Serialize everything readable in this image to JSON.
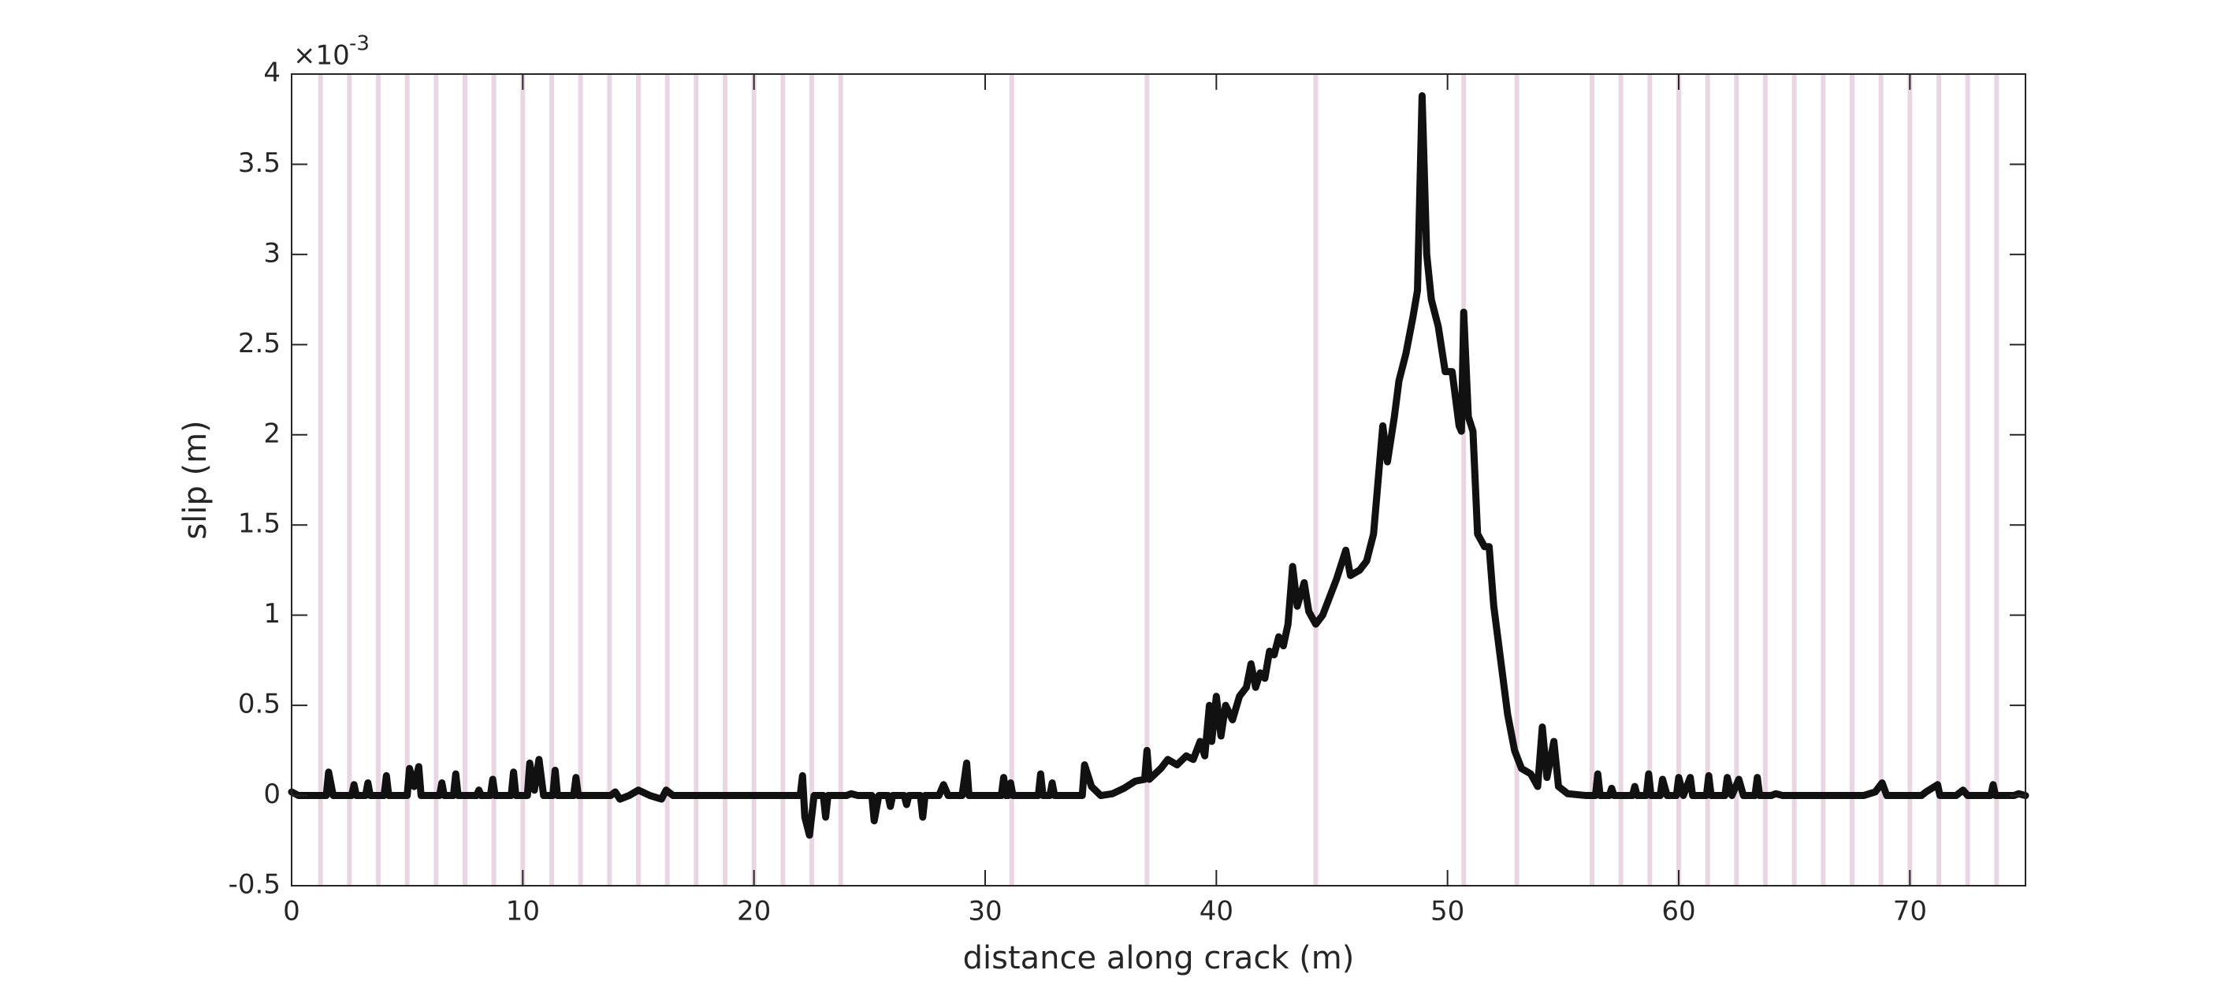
{
  "chart_data": {
    "type": "line",
    "xlabel": "distance along crack (m)",
    "ylabel": "slip (m)",
    "y_scale_base": "×10",
    "y_scale_exponent": "-3",
    "xlim": [
      0,
      75
    ],
    "ylim": [
      -0.5,
      4
    ],
    "xticks": [
      0,
      10,
      20,
      30,
      40,
      50,
      60,
      70
    ],
    "yticks": [
      -0.5,
      0,
      0.5,
      1,
      1.5,
      2,
      2.5,
      3,
      3.5,
      4
    ],
    "color": "#111111",
    "vline_color": "#ead6e3",
    "vlines": [
      1.25,
      2.5,
      3.75,
      5,
      6.25,
      7.5,
      8.75,
      10,
      11.25,
      12.5,
      13.75,
      15,
      16.25,
      17.5,
      18.75,
      20,
      21.25,
      22.5,
      23.75,
      31.15,
      37,
      44.3,
      50.7,
      53,
      56.25,
      57.5,
      58.75,
      60,
      61.25,
      62.5,
      63.75,
      65,
      66.25,
      67.5,
      68.75,
      70,
      71.25,
      72.5,
      73.75
    ],
    "x": [
      0,
      0.3,
      1.5,
      1.6,
      1.8,
      2.6,
      2.7,
      2.8,
      3.2,
      3.3,
      3.4,
      4.0,
      4.1,
      4.2,
      5.0,
      5.1,
      5.3,
      5.5,
      5.6,
      6.4,
      6.5,
      6.6,
      7.0,
      7.1,
      7.2,
      8.0,
      8.1,
      8.2,
      8.6,
      8.7,
      8.8,
      9.5,
      9.6,
      9.7,
      10.2,
      10.3,
      10.5,
      10.7,
      10.9,
      11.3,
      11.4,
      11.5,
      12.2,
      12.3,
      12.4,
      13.8,
      14.0,
      14.2,
      14.6,
      15.0,
      15.5,
      16.0,
      16.2,
      16.5,
      22.0,
      22.1,
      22.2,
      22.4,
      22.6,
      23.0,
      23.1,
      23.2,
      24.0,
      24.2,
      24.5,
      25.1,
      25.2,
      25.4,
      25.8,
      25.9,
      26.0,
      26.5,
      26.6,
      26.7,
      27.2,
      27.3,
      27.4,
      28.0,
      28.2,
      28.4,
      29.0,
      29.2,
      29.3,
      30.7,
      30.8,
      30.9,
      31.0,
      31.1,
      31.2,
      32.3,
      32.4,
      32.5,
      32.8,
      32.9,
      33.0,
      34.2,
      34.3,
      34.6,
      35.0,
      35.5,
      36.0,
      36.5,
      36.9,
      37.0,
      37.1,
      37.6,
      37.9,
      38.3,
      38.7,
      39.0,
      39.3,
      39.5,
      39.7,
      39.8,
      40.0,
      40.2,
      40.4,
      40.7,
      41.0,
      41.3,
      41.5,
      41.7,
      41.9,
      42.1,
      42.3,
      42.5,
      42.7,
      42.9,
      43.1,
      43.3,
      43.5,
      43.8,
      44.0,
      44.3,
      44.6,
      44.9,
      45.2,
      45.6,
      45.8,
      46.2,
      46.5,
      46.8,
      47.2,
      47.4,
      47.7,
      47.9,
      48.2,
      48.5,
      48.7,
      48.9,
      49.1,
      49.3,
      49.6,
      49.9,
      50.2,
      50.5,
      50.6,
      50.7,
      50.9,
      51.1,
      51.3,
      51.6,
      51.8,
      52.0,
      52.3,
      52.6,
      52.9,
      53.2,
      53.6,
      53.9,
      54.1,
      54.3,
      54.6,
      54.8,
      55.2,
      56.0,
      56.4,
      56.5,
      56.6,
      57.0,
      57.1,
      57.2,
      58.0,
      58.1,
      58.2,
      58.6,
      58.7,
      58.8,
      59.2,
      59.3,
      59.5,
      59.9,
      60.0,
      60.2,
      60.5,
      60.6,
      61.2,
      61.3,
      61.4,
      62.0,
      62.1,
      62.3,
      62.6,
      62.8,
      63.3,
      63.4,
      63.5,
      64.0,
      64.2,
      64.5,
      68.0,
      68.5,
      68.8,
      69.0,
      70.5,
      70.7,
      71.2,
      71.3,
      72.0,
      72.3,
      72.5,
      73.5,
      73.6,
      73.7,
      74.5,
      74.7,
      75
    ],
    "values": [
      0.02,
      0,
      0,
      0.13,
      0,
      0,
      0.06,
      0,
      0,
      0.07,
      0,
      0,
      0.11,
      0,
      0,
      0.15,
      0.05,
      0.16,
      0,
      0,
      0.07,
      0,
      0,
      0.12,
      0,
      0,
      0.03,
      0,
      0,
      0.09,
      0,
      0,
      0.13,
      0,
      0,
      0.18,
      0.03,
      0.2,
      0,
      0,
      0.14,
      0,
      0,
      0.1,
      0,
      0,
      0.02,
      -0.02,
      0,
      0.03,
      0,
      -0.02,
      0.03,
      0,
      0,
      0.11,
      -0.12,
      -0.22,
      0,
      0,
      -0.12,
      0,
      0,
      0.01,
      0,
      0,
      -0.14,
      0,
      0,
      -0.06,
      0,
      0,
      -0.05,
      0,
      0,
      -0.12,
      0,
      0,
      0.06,
      0,
      0,
      0.18,
      0,
      0,
      0.1,
      0,
      0,
      0.07,
      0,
      0,
      0.12,
      0,
      0,
      0.07,
      0,
      0,
      0.17,
      0.05,
      0,
      0.01,
      0.04,
      0.08,
      0.09,
      0.25,
      0.09,
      0.15,
      0.2,
      0.17,
      0.22,
      0.2,
      0.3,
      0.22,
      0.5,
      0.3,
      0.55,
      0.33,
      0.5,
      0.42,
      0.55,
      0.6,
      0.73,
      0.6,
      0.68,
      0.65,
      0.8,
      0.78,
      0.88,
      0.83,
      0.95,
      1.27,
      1.05,
      1.18,
      1.02,
      0.95,
      1.0,
      1.1,
      1.2,
      1.36,
      1.22,
      1.25,
      1.3,
      1.45,
      2.05,
      1.85,
      2.1,
      2.3,
      2.45,
      2.65,
      2.8,
      3.88,
      3.0,
      2.75,
      2.6,
      2.35,
      2.35,
      2.05,
      2.02,
      2.68,
      2.1,
      2.02,
      1.45,
      1.38,
      1.38,
      1.05,
      0.75,
      0.45,
      0.25,
      0.15,
      0.12,
      0.05,
      0.38,
      0.1,
      0.3,
      0.05,
      0.01,
      0,
      0,
      0.12,
      0,
      0,
      0.04,
      0,
      0,
      0.05,
      0,
      0,
      0.12,
      0,
      0,
      0.09,
      0,
      0,
      0.1,
      0,
      0.1,
      0,
      0,
      0.11,
      0,
      0,
      0.1,
      0,
      0.09,
      0,
      0,
      0.1,
      0,
      0,
      0.01,
      0,
      0,
      0.02,
      0.07,
      0,
      0,
      0.02,
      0.06,
      0,
      0,
      0.03,
      0,
      0,
      0.06,
      0,
      0,
      0.01,
      0
    ]
  }
}
